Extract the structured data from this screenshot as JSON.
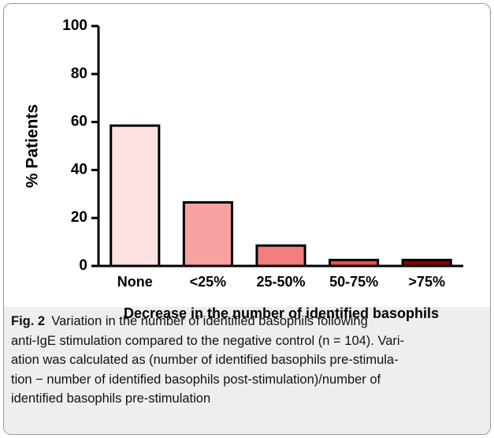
{
  "chart_data": {
    "type": "bar",
    "y_label": "% Patients",
    "x_label": "Decrease in the number of identified basophils",
    "categories": [
      "None",
      "<25%",
      "25-50%",
      "50-75%",
      ">75%"
    ],
    "values": [
      58.5,
      26.5,
      8.5,
      2.5,
      2.5
    ],
    "colors": [
      "#fde0e1",
      "#f7a1a1",
      "#f27e7e",
      "#e84f4f",
      "#8b0000"
    ],
    "ylim": [
      0,
      100
    ],
    "yticks": [
      0,
      20,
      40,
      60,
      80,
      100
    ],
    "grid": false
  },
  "figure_caption": {
    "label": "Fig. 2",
    "lines": [
      "Variation in the number of identified basophils following",
      "anti-IgE stimulation compared to the negative control (n = 104). Vari-",
      "ation was calculated as (number of identified basophils pre-stimula-",
      "tion − number of identified basophils post-stimulation)/number of",
      "identified basophils pre-stimulation"
    ]
  }
}
